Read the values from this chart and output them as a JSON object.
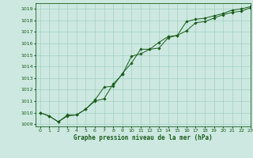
{
  "title": "Graphe pression niveau de la mer (hPa)",
  "bg_color": "#cce8e0",
  "grid_color": "#99ccbb",
  "line_color": "#1a5c1a",
  "marker_color": "#1a5c1a",
  "xlim": [
    -0.5,
    23
  ],
  "ylim": [
    1008.8,
    1019.5
  ],
  "yticks": [
    1009,
    1010,
    1011,
    1012,
    1013,
    1014,
    1015,
    1016,
    1017,
    1018,
    1019
  ],
  "xticks": [
    0,
    1,
    2,
    3,
    4,
    5,
    6,
    7,
    8,
    9,
    10,
    11,
    12,
    13,
    14,
    15,
    16,
    17,
    18,
    19,
    20,
    21,
    22,
    23
  ],
  "series1": {
    "x": [
      0,
      1,
      2,
      3,
      4,
      5,
      6,
      7,
      8,
      9,
      10,
      11,
      12,
      13,
      14,
      15,
      16,
      17,
      18,
      19,
      20,
      21,
      22,
      23
    ],
    "y": [
      1010.0,
      1009.7,
      1009.2,
      1009.7,
      1009.8,
      1010.3,
      1011.1,
      1012.2,
      1012.3,
      1013.4,
      1014.3,
      1015.5,
      1015.5,
      1015.6,
      1016.5,
      1016.7,
      1017.1,
      1017.8,
      1017.9,
      1018.2,
      1018.5,
      1018.7,
      1018.8,
      1019.1
    ]
  },
  "series2": {
    "x": [
      0,
      1,
      2,
      3,
      4,
      5,
      6,
      7,
      8,
      9,
      10,
      11,
      12,
      13,
      14,
      15,
      16,
      17,
      18,
      19,
      20,
      21,
      22,
      23
    ],
    "y": [
      1010.0,
      1009.7,
      1009.2,
      1009.8,
      1009.8,
      1010.3,
      1011.0,
      1011.2,
      1012.5,
      1013.3,
      1014.9,
      1015.1,
      1015.5,
      1016.1,
      1016.6,
      1016.7,
      1017.9,
      1018.1,
      1018.2,
      1018.4,
      1018.6,
      1018.9,
      1019.0,
      1019.2
    ]
  },
  "label_fontsize": 4.5,
  "xlabel_fontsize": 5.5
}
